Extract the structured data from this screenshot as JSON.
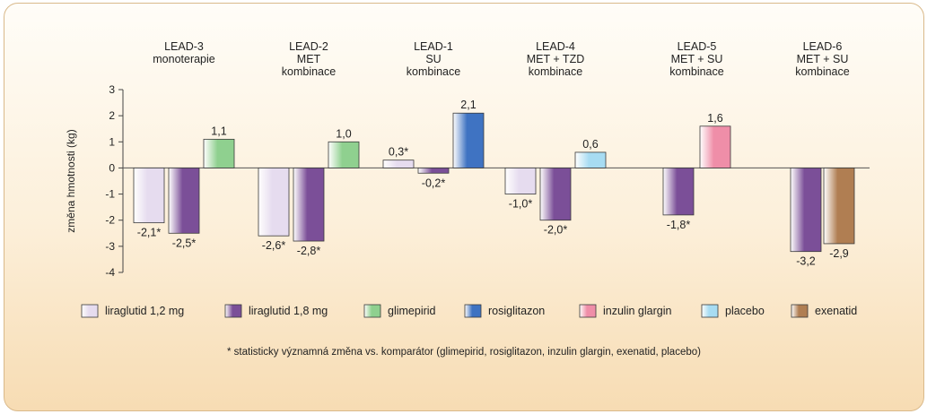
{
  "chart_data": {
    "type": "bar",
    "ylabel": "změna hmotnosti (kg)",
    "ylim": [
      -4,
      3
    ],
    "yticks": [
      "3",
      "2",
      "1",
      "0",
      "-1",
      "-2",
      "-3",
      "-4"
    ],
    "grid": false,
    "legend_position": "bottom",
    "groups": [
      {
        "title_lines": [
          "LEAD-3",
          "monoterapie"
        ],
        "bars": [
          {
            "series": "liraglutid 1,2 mg",
            "value": -2.1,
            "label": "-2,1*"
          },
          {
            "series": "liraglutid 1,8 mg",
            "value": -2.5,
            "label": "-2,5*"
          },
          {
            "series": "glimepirid",
            "value": 1.1,
            "label": "1,1"
          }
        ]
      },
      {
        "title_lines": [
          "LEAD-2",
          "MET",
          "kombinace"
        ],
        "bars": [
          {
            "series": "liraglutid 1,2 mg",
            "value": -2.6,
            "label": "-2,6*"
          },
          {
            "series": "liraglutid 1,8 mg",
            "value": -2.8,
            "label": "-2,8*"
          },
          {
            "series": "glimepirid",
            "value": 1.0,
            "label": "1,0"
          }
        ]
      },
      {
        "title_lines": [
          "LEAD-1",
          "SU",
          "kombinace"
        ],
        "bars": [
          {
            "series": "liraglutid 1,2 mg",
            "value": 0.3,
            "label": "0,3*"
          },
          {
            "series": "liraglutid 1,8 mg",
            "value": -0.2,
            "label": "-0,2*"
          },
          {
            "series": "rosiglitazon",
            "value": 2.1,
            "label": "2,1"
          }
        ]
      },
      {
        "title_lines": [
          "LEAD-4",
          "MET + TZD",
          "kombinace"
        ],
        "bars": [
          {
            "series": "liraglutid 1,2 mg",
            "value": -1.0,
            "label": "-1,0*"
          },
          {
            "series": "liraglutid 1,8 mg",
            "value": -2.0,
            "label": "-2,0*"
          },
          {
            "series": "placebo",
            "value": 0.6,
            "label": "0,6"
          }
        ]
      },
      {
        "title_lines": [
          "LEAD-5",
          "MET + SU",
          "kombinace"
        ],
        "bars": [
          {
            "series": "liraglutid 1,8 mg",
            "value": -1.8,
            "label": "-1,8*"
          },
          {
            "series": "inzulin glargin",
            "value": 1.6,
            "label": "1,6"
          }
        ]
      },
      {
        "title_lines": [
          "LEAD-6",
          "MET + SU",
          "kombinace"
        ],
        "bars": [
          {
            "series": "liraglutid 1,8 mg",
            "value": -3.2,
            "label": "-3,2"
          },
          {
            "series": "exenatid",
            "value": -2.9,
            "label": "-2,9"
          }
        ]
      }
    ],
    "legend": [
      {
        "name": "liraglutid 1,2 mg",
        "color": "#e6dcef"
      },
      {
        "name": "liraglutid 1,8 mg",
        "color": "#7b4f98"
      },
      {
        "name": "glimepirid",
        "color": "#8fd08f"
      },
      {
        "name": "rosiglitazon",
        "color": "#3f73c2"
      },
      {
        "name": "inzulin glargin",
        "color": "#ef8ea8"
      },
      {
        "name": "placebo",
        "color": "#a7dcf2"
      },
      {
        "name": "exenatid",
        "color": "#b07e52"
      }
    ],
    "footnote": "* statisticky významná změna vs. komparátor (glimepirid, rosiglitazon, inzulin glargin, exenatid, placebo)"
  }
}
